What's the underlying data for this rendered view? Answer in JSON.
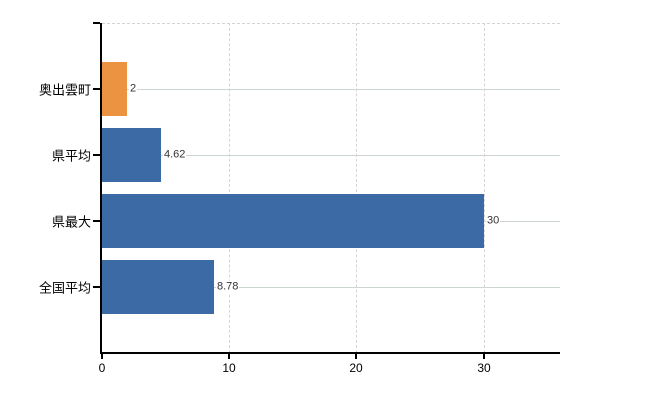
{
  "chart_data": {
    "type": "bar",
    "orientation": "horizontal",
    "title": "",
    "xlabel": "",
    "ylabel": "",
    "categories": [
      "奥出雲町",
      "県平均",
      "県最大",
      "全国平均"
    ],
    "values": [
      2,
      4.62,
      30,
      8.78
    ],
    "value_labels": [
      "2",
      "4.62",
      "30",
      "8.78"
    ],
    "bar_colors": [
      "#eb9340",
      "#3b6aa5",
      "#3b6aa5",
      "#3b6aa5"
    ],
    "xlim": [
      0,
      36
    ],
    "x_ticks": [
      0,
      10,
      20,
      30
    ],
    "x_tick_labels": [
      "0",
      "10",
      "20",
      "30"
    ],
    "grid": true,
    "legend": "none",
    "colors": {
      "background": "#ffffff",
      "axis": "#000000",
      "horizontal_gridline": "#cdd6cd",
      "vertical_gridline": "#d6d4d4",
      "top_border": "#d4d2d2",
      "category_label_text": "#000000",
      "tick_label_text": "#000000",
      "value_label_text": "#333333",
      "orange_bar": "#eb9340",
      "blue_bar": "#3b6aa5"
    }
  }
}
